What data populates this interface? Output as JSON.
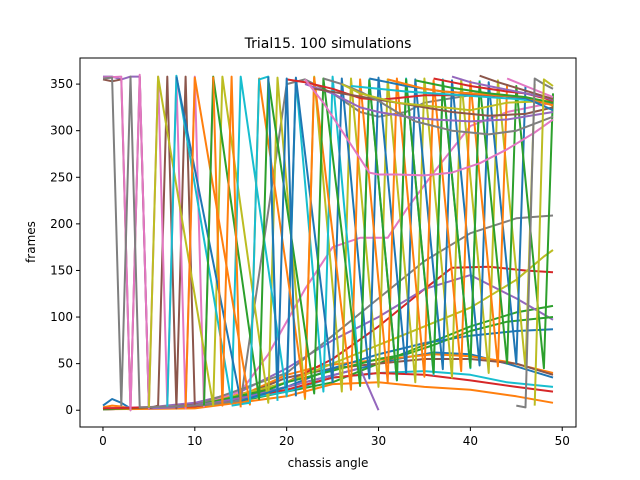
{
  "chart_data": {
    "type": "line",
    "title": "Trial15. 100 simulations",
    "xlabel": "chassis angle",
    "ylabel": "frames",
    "xlim": [
      -2.5,
      51.5
    ],
    "ylim": [
      -18,
      378
    ],
    "xticks": [
      0,
      10,
      20,
      30,
      40,
      50
    ],
    "yticks": [
      0,
      50,
      100,
      150,
      200,
      250,
      300,
      350
    ],
    "grid": false,
    "legend": "none",
    "colors": [
      "#1f77b4",
      "#ff7f0e",
      "#2ca02c",
      "#d62728",
      "#9467bd",
      "#8c564b",
      "#e377c2",
      "#7f7f7f",
      "#bcbd22",
      "#17becf"
    ],
    "series": [
      {
        "x": [
          0,
          1,
          2,
          3,
          8,
          12,
          16,
          20,
          24,
          28,
          32,
          36,
          40,
          44,
          49
        ],
        "values": [
          5,
          12,
          8,
          2,
          3,
          8,
          15,
          25,
          35,
          45,
          55,
          62,
          60,
          50,
          35
        ]
      },
      {
        "x": [
          0,
          1,
          2,
          3,
          8,
          12,
          16,
          20,
          24,
          28,
          32,
          36,
          40,
          44,
          49
        ],
        "values": [
          3,
          5,
          4,
          2,
          4,
          10,
          20,
          38,
          48,
          52,
          56,
          60,
          58,
          52,
          40
        ]
      },
      {
        "x": [
          0,
          5,
          10,
          15,
          20,
          25,
          30,
          35,
          40,
          45,
          49
        ],
        "values": [
          1,
          2,
          4,
          10,
          20,
          30,
          50,
          70,
          90,
          105,
          112
        ]
      },
      {
        "x": [
          0,
          5,
          10,
          15,
          20,
          25,
          30,
          35,
          38,
          42,
          46,
          49
        ],
        "values": [
          1,
          2,
          5,
          14,
          30,
          55,
          90,
          130,
          153,
          154,
          150,
          148
        ]
      },
      {
        "x": [
          0,
          5,
          10,
          15,
          20,
          25,
          30,
          35,
          40,
          45,
          49
        ],
        "values": [
          2,
          3,
          8,
          20,
          45,
          75,
          100,
          130,
          145,
          120,
          97
        ]
      },
      {
        "x": [
          0,
          5,
          10,
          15,
          20,
          25,
          30,
          35,
          40,
          45,
          49
        ],
        "values": [
          1,
          2,
          6,
          15,
          35,
          45,
          50,
          55,
          55,
          50,
          38
        ]
      },
      {
        "x": [
          0,
          10,
          15,
          18,
          22,
          25,
          28,
          31,
          33,
          36,
          40,
          44,
          49
        ],
        "values": [
          2,
          5,
          20,
          60,
          130,
          175,
          185,
          185,
          215,
          255,
          305,
          320,
          330
        ]
      },
      {
        "x": [
          0,
          10,
          20,
          25,
          30,
          35,
          40,
          45,
          49
        ],
        "values": [
          1,
          5,
          40,
          80,
          120,
          160,
          190,
          206,
          209
        ]
      },
      {
        "x": [
          0,
          10,
          20,
          25,
          30,
          35,
          40,
          45,
          48,
          49
        ],
        "values": [
          1,
          4,
          30,
          50,
          70,
          90,
          110,
          140,
          165,
          172
        ]
      },
      {
        "x": [
          0,
          10,
          20,
          25,
          30,
          35,
          40,
          44,
          49
        ],
        "values": [
          1,
          3,
          20,
          35,
          40,
          42,
          38,
          30,
          25
        ]
      },
      {
        "x": [
          0,
          10,
          20,
          25,
          30,
          35,
          40,
          45,
          49
        ],
        "values": [
          1,
          3,
          25,
          45,
          60,
          72,
          80,
          85,
          87
        ]
      },
      {
        "x": [
          0,
          10,
          20,
          25,
          30,
          35,
          40,
          45,
          49
        ],
        "values": [
          1,
          2,
          15,
          28,
          30,
          25,
          22,
          15,
          8
        ]
      },
      {
        "x": [
          0,
          10,
          18,
          20,
          24,
          28,
          30,
          33,
          36,
          40,
          44,
          49
        ],
        "values": [
          1,
          5,
          22,
          30,
          40,
          50,
          55,
          60,
          70,
          85,
          95,
          100
        ]
      },
      {
        "x": [
          0,
          10,
          20,
          25,
          30,
          35,
          40,
          45,
          49
        ],
        "values": [
          2,
          4,
          22,
          35,
          40,
          38,
          32,
          25,
          20
        ]
      },
      {
        "x": [
          0,
          1,
          2,
          3,
          4,
          5,
          8,
          12,
          16,
          20,
          24,
          28,
          30
        ],
        "values": [
          358,
          358,
          355,
          358,
          358,
          2,
          3,
          8,
          15,
          25,
          35,
          45,
          0
        ]
      },
      {
        "x": [
          0,
          1,
          2,
          3,
          4,
          5,
          6,
          7,
          8,
          9,
          10
        ],
        "values": [
          355,
          353,
          355,
          0,
          358,
          2,
          5,
          358,
          2,
          358,
          5
        ]
      },
      {
        "x": [
          0,
          2,
          3,
          4,
          5,
          6,
          7,
          8,
          9,
          10,
          11,
          12
        ],
        "values": [
          357,
          358,
          0,
          360,
          2,
          358,
          5,
          356,
          2,
          358,
          4,
          355
        ]
      },
      {
        "x": [
          0,
          1,
          2,
          3,
          4,
          10,
          15,
          20,
          22,
          25,
          28,
          30,
          33,
          35,
          38,
          40,
          42
        ],
        "values": [
          356,
          357,
          5,
          358,
          3,
          5,
          10,
          350,
          355,
          340,
          320,
          315,
          320,
          330,
          335,
          338,
          340
        ]
      },
      {
        "x": [
          5,
          6,
          12,
          13,
          18,
          19,
          22,
          23,
          26,
          27,
          30,
          31,
          34,
          35,
          38,
          39,
          42,
          43,
          46,
          47
        ],
        "values": [
          3,
          358,
          5,
          358,
          8,
          357,
          12,
          358,
          20,
          356,
          25,
          355,
          30,
          356,
          35,
          355,
          40,
          354,
          45,
          350
        ]
      },
      {
        "x": [
          7,
          8,
          14,
          15,
          20,
          21,
          24,
          25,
          28,
          29,
          32,
          33,
          36,
          37,
          40,
          41
        ],
        "values": [
          4,
          359,
          8,
          358,
          15,
          356,
          20,
          358,
          28,
          355,
          32,
          356,
          38,
          355,
          45,
          354
        ]
      },
      {
        "x": [
          8,
          15,
          20,
          21,
          25,
          26,
          29,
          30,
          33,
          34,
          37,
          38,
          41,
          42,
          45,
          46
        ],
        "values": [
          358,
          10,
          25,
          357,
          30,
          356,
          34,
          357,
          40,
          355,
          44,
          354,
          48,
          352,
          50,
          348
        ]
      },
      {
        "x": [
          9,
          10,
          16,
          17,
          22,
          23,
          27,
          28,
          31,
          32,
          35,
          36,
          39,
          40,
          43,
          44
        ],
        "values": [
          3,
          357,
          6,
          356,
          14,
          357,
          22,
          355,
          30,
          356,
          36,
          354,
          42,
          353,
          47,
          350
        ]
      },
      {
        "x": [
          11,
          12,
          17,
          18,
          23,
          24,
          28,
          29,
          32,
          33,
          36,
          37,
          40,
          41,
          44,
          45,
          48,
          49
        ],
        "values": [
          5,
          358,
          12,
          355,
          18,
          356,
          26,
          354,
          32,
          355,
          40,
          353,
          46,
          352,
          50,
          348,
          45,
          340
        ]
      },
      {
        "x": [
          20,
          22,
          25,
          28,
          30,
          32,
          35,
          38,
          40,
          44,
          49
        ],
        "values": [
          355,
          352,
          345,
          335,
          333,
          335,
          338,
          338,
          339,
          337,
          328
        ]
      },
      {
        "x": [
          22,
          25,
          28,
          30,
          33,
          36,
          40,
          44,
          49
        ],
        "values": [
          350,
          340,
          325,
          320,
          315,
          312,
          310,
          312,
          320
        ]
      },
      {
        "x": [
          23,
          26,
          29,
          32,
          35,
          38,
          42,
          46,
          49
        ],
        "values": [
          345,
          340,
          335,
          330,
          325,
          320,
          316,
          318,
          325
        ]
      },
      {
        "x": [
          22,
          24,
          26,
          28,
          29,
          30,
          32,
          35,
          38,
          41,
          44,
          47,
          49
        ],
        "values": [
          355,
          330,
          300,
          270,
          255,
          253,
          253,
          252,
          255,
          265,
          280,
          298,
          312
        ]
      },
      {
        "x": [
          24,
          26,
          28,
          30,
          32,
          34,
          36,
          38,
          40,
          42,
          45,
          49
        ],
        "values": [
          356,
          350,
          342,
          332,
          320,
          310,
          305,
          300,
          298,
          296,
          300,
          315
        ]
      },
      {
        "x": [
          26,
          28,
          30,
          32,
          34,
          36,
          38,
          40,
          44,
          49
        ],
        "values": [
          350,
          340,
          335,
          330,
          328,
          326,
          324,
          322,
          330,
          332
        ]
      },
      {
        "x": [
          27,
          30,
          33,
          36,
          39,
          42,
          45,
          49
        ],
        "values": [
          348,
          345,
          342,
          340,
          338,
          336,
          334,
          330
        ]
      },
      {
        "x": [
          29,
          31,
          33,
          35,
          37,
          40,
          43,
          46,
          49
        ],
        "values": [
          356,
          352,
          348,
          345,
          342,
          340,
          338,
          335,
          322
        ]
      },
      {
        "x": [
          31,
          33,
          35,
          37,
          40,
          43,
          46,
          49
        ],
        "values": [
          355,
          350,
          345,
          342,
          340,
          338,
          336,
          327
        ]
      },
      {
        "x": [
          34,
          36,
          38,
          40,
          42,
          44,
          46,
          49
        ],
        "values": [
          354,
          350,
          346,
          343,
          340,
          338,
          336,
          330
        ]
      },
      {
        "x": [
          36,
          38,
          40,
          42,
          44,
          46,
          48,
          49
        ],
        "values": [
          356,
          352,
          348,
          345,
          342,
          340,
          335,
          332
        ]
      },
      {
        "x": [
          38,
          40,
          42,
          44,
          46,
          48,
          49
        ],
        "values": [
          358,
          352,
          348,
          344,
          340,
          336,
          333
        ]
      },
      {
        "x": [
          41,
          43,
          45,
          47,
          49
        ],
        "values": [
          359,
          352,
          346,
          340,
          334
        ]
      },
      {
        "x": [
          44,
          46,
          48,
          49
        ],
        "values": [
          356,
          348,
          340,
          336
        ]
      },
      {
        "x": [
          45,
          46,
          47,
          48,
          49
        ],
        "values": [
          5,
          3,
          356,
          350,
          345
        ]
      },
      {
        "x": [
          47,
          48,
          49
        ],
        "values": [
          5,
          355,
          348
        ]
      },
      {
        "x": [
          14,
          16,
          17,
          18,
          19
        ],
        "values": [
          5,
          8,
          355,
          358,
          10
        ]
      },
      {
        "x": [
          18,
          19,
          20,
          21
        ],
        "values": [
          358,
          20,
          356,
          15
        ]
      },
      {
        "x": [
          12,
          13,
          14,
          15
        ],
        "values": [
          358,
          5,
          358,
          3
        ]
      }
    ]
  }
}
